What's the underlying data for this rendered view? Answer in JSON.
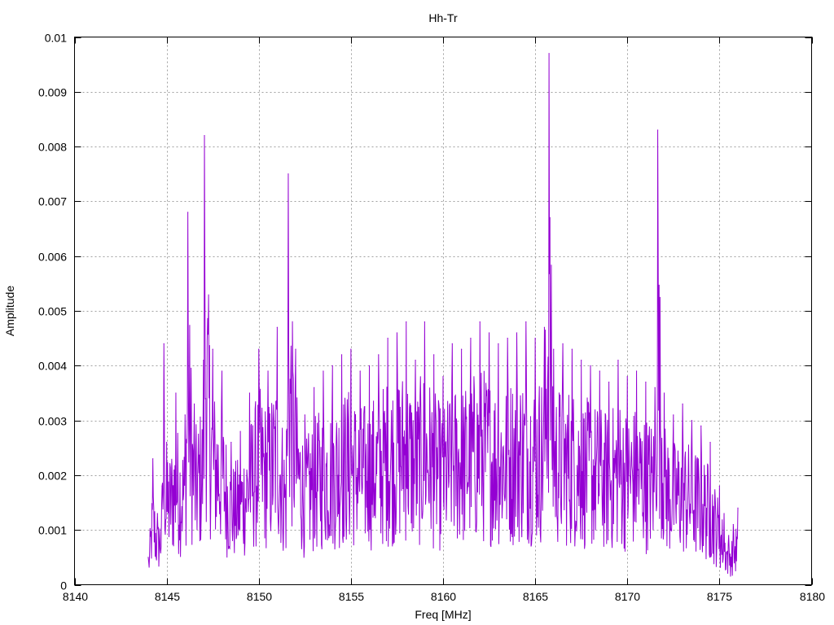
{
  "chart_data": {
    "type": "line",
    "title": "Hh-Tr",
    "xlabel": "Freq [MHz]",
    "ylabel": "Amplitude",
    "xlim": [
      8140,
      8180
    ],
    "ylim": [
      0,
      0.01
    ],
    "xticks": [
      8140,
      8145,
      8150,
      8155,
      8160,
      8165,
      8170,
      8175,
      8180
    ],
    "yticks": [
      0,
      0.001,
      0.002,
      0.003,
      0.004,
      0.005,
      0.006,
      0.007,
      0.008,
      0.009,
      0.01
    ],
    "xtick_labels": [
      "8140",
      "8145",
      "8150",
      "8155",
      "8160",
      "8165",
      "8170",
      "8175",
      "8180"
    ],
    "ytick_labels": [
      "0",
      "0.001",
      "0.002",
      "0.003",
      "0.004",
      "0.005",
      "0.006",
      "0.007",
      "0.008",
      "0.009",
      "0.01"
    ],
    "grid": true,
    "series": [
      {
        "color": "#9400d3",
        "x": [
          8144.0,
          8144.25,
          8144.5,
          8144.75,
          8144.85,
          8145.0,
          8145.5,
          8146.0,
          8146.15,
          8146.5,
          8147.0,
          8147.05,
          8147.5,
          8148.0,
          8148.5,
          8149.0,
          8149.5,
          8150.0,
          8150.5,
          8151.0,
          8151.5,
          8151.6,
          8152.0,
          8152.5,
          8153.0,
          8153.5,
          8154.0,
          8154.5,
          8155.0,
          8155.5,
          8156.0,
          8156.5,
          8157.0,
          8157.5,
          8158.0,
          8158.5,
          8159.0,
          8159.5,
          8160.0,
          8160.5,
          8161.0,
          8161.5,
          8162.0,
          8162.5,
          8163.0,
          8163.5,
          8164.0,
          8164.5,
          8165.0,
          8165.5,
          8165.75,
          8166.0,
          8166.5,
          8167.0,
          8167.5,
          8168.0,
          8168.5,
          8169.0,
          8169.5,
          8170.0,
          8170.5,
          8171.0,
          8171.5,
          8171.65,
          8172.0,
          8172.5,
          8173.0,
          8173.5,
          8174.0,
          8174.5,
          8175.0,
          8175.25,
          8175.5,
          8175.75,
          8176.0
        ],
        "y": [
          0.0005,
          0.0023,
          0.0013,
          0.0018,
          0.0044,
          0.0026,
          0.0035,
          0.0031,
          0.0068,
          0.0033,
          0.0041,
          0.0082,
          0.0043,
          0.0039,
          0.0026,
          0.0028,
          0.0035,
          0.0043,
          0.0039,
          0.0047,
          0.0028,
          0.0075,
          0.0043,
          0.0031,
          0.0036,
          0.0039,
          0.004,
          0.0042,
          0.0043,
          0.0039,
          0.004,
          0.0042,
          0.0045,
          0.0046,
          0.0048,
          0.0041,
          0.0048,
          0.0042,
          0.0038,
          0.0044,
          0.0043,
          0.0045,
          0.0048,
          0.0046,
          0.0044,
          0.0045,
          0.0046,
          0.0048,
          0.0045,
          0.0047,
          0.0097,
          0.0043,
          0.0044,
          0.0043,
          0.0041,
          0.004,
          0.0039,
          0.0037,
          0.0041,
          0.0038,
          0.0039,
          0.0037,
          0.0036,
          0.0083,
          0.0035,
          0.0031,
          0.0033,
          0.003,
          0.0029,
          0.0026,
          0.0018,
          0.0013,
          0.0009,
          0.0011,
          0.0014
        ]
      }
    ]
  }
}
